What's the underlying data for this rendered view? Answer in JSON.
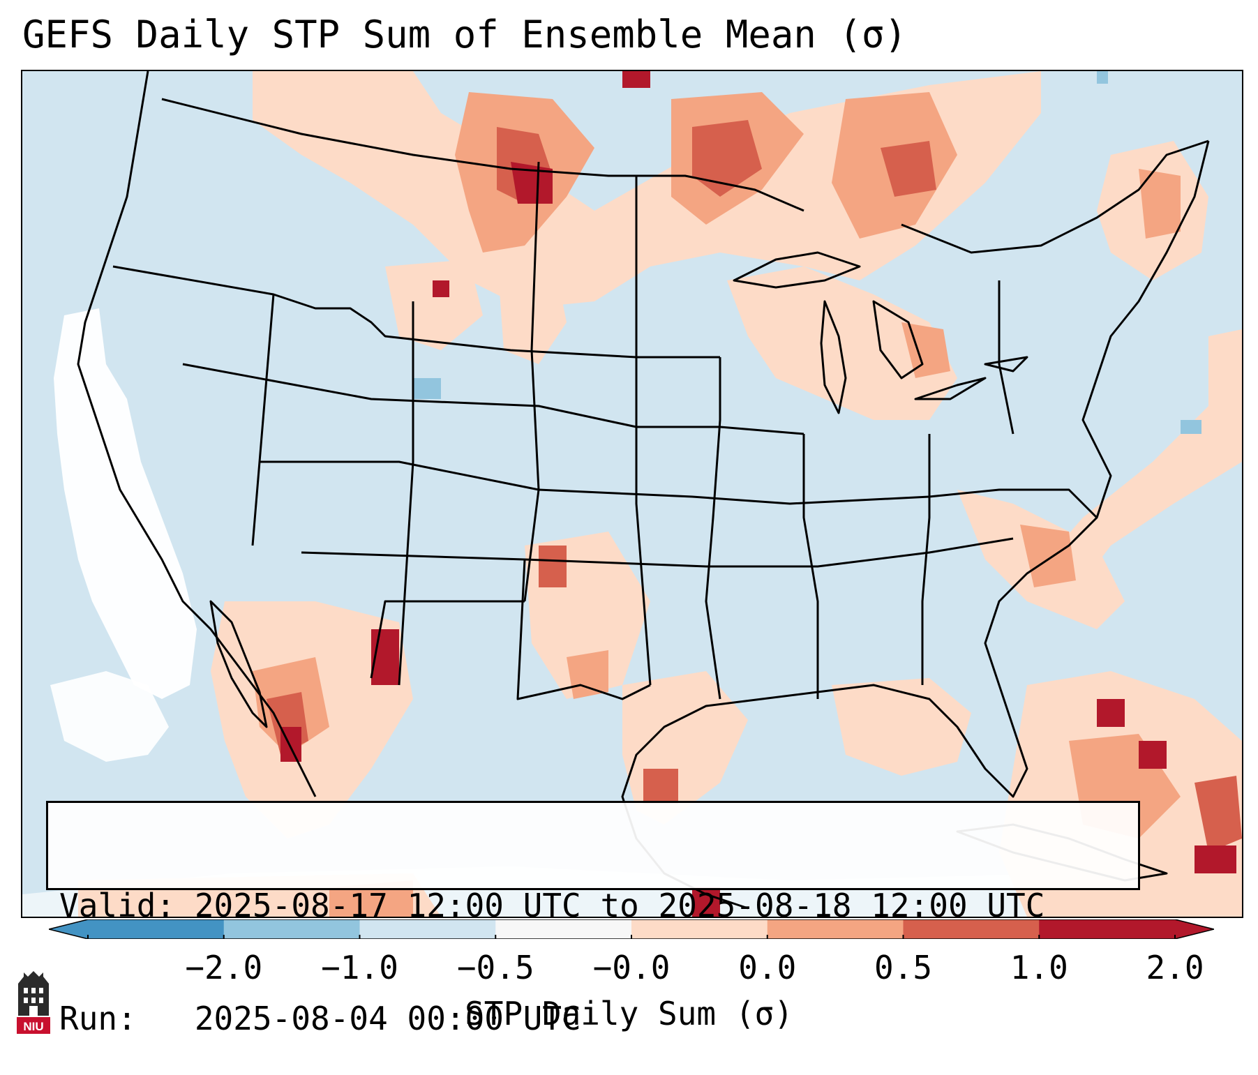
{
  "title": "GEFS Daily STP Sum of Ensemble Mean (σ)",
  "info": {
    "valid_line": "Valid: 2025-08-17 12:00 UTC to 2025-08-18 12:00 UTC",
    "run_line": "Run:   2025-08-04 00:00 UTC"
  },
  "colorbar": {
    "label": "STP Daily Sum (σ)",
    "tick_labels": [
      "−2.0",
      "−1.0",
      "−0.5",
      "−0.0",
      "0.0",
      "0.5",
      "1.0",
      "2.0"
    ],
    "colors": [
      "#4393c3",
      "#92c5de",
      "#d1e5f0",
      "#f7f7f7",
      "#fddbc7",
      "#f4a582",
      "#d6604d",
      "#b2182b"
    ],
    "extend": "both"
  },
  "map": {
    "projection": "Lambert conformal, CONUS",
    "background_color": "#d1e5f0",
    "fill_colors": {
      "white": "#ffffff",
      "light_red": "#fddbc7",
      "medium_red": "#f4a582",
      "red": "#d6604d",
      "dark_red": "#b2182b",
      "light_blue": "#92c5de"
    }
  },
  "logo": {
    "text": "NIU",
    "icon": "niu-tower-logo-icon"
  }
}
